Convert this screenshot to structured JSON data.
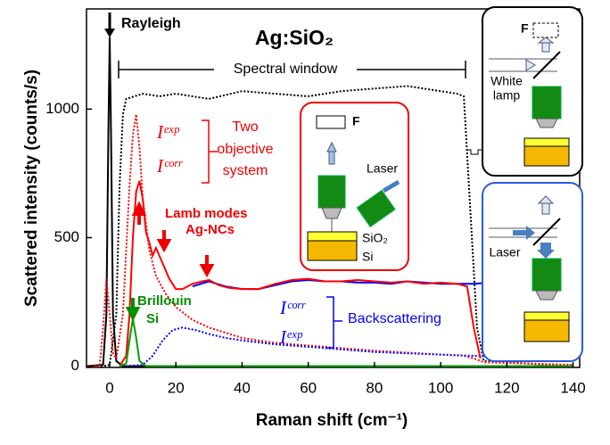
{
  "chart_data": {
    "type": "line",
    "title": "Ag:SiO₂",
    "x_label": "Raman shift (cm⁻¹)",
    "y_label": "Scattered intensity (counts/s)",
    "xlim": [
      -7,
      142
    ],
    "ylim": [
      -5,
      1390
    ],
    "xticks": [
      0,
      20,
      40,
      60,
      80,
      100,
      120,
      140
    ],
    "yticks": [
      0,
      500,
      1000
    ],
    "series": [
      {
        "color": "#000000",
        "style": "solid",
        "x": [
          -7,
          -2,
          -1,
          -0.4,
          0,
          0.4,
          1,
          2,
          4,
          140
        ],
        "values": [
          0,
          5,
          200,
          900,
          1280,
          900,
          200,
          20,
          0,
          0
        ]
      },
      {
        "color": "#000000",
        "style": "dotted",
        "x": [
          -7,
          -2,
          0,
          2,
          3,
          4,
          5,
          10,
          15,
          20,
          30,
          40,
          50,
          60,
          70,
          80,
          90,
          100,
          105,
          107,
          109,
          111,
          113,
          140
        ],
        "values": [
          0,
          0,
          5,
          200,
          700,
          980,
          1040,
          1060,
          1050,
          1060,
          1040,
          1070,
          1060,
          1050,
          1070,
          1080,
          1090,
          1070,
          1060,
          1050,
          600,
          150,
          20,
          0
        ]
      },
      {
        "color": "#ff0000",
        "style": "dotted",
        "x": [
          -7,
          -3,
          -2,
          -1,
          0,
          1,
          2,
          4,
          6,
          7,
          8,
          9,
          10,
          12,
          14,
          17,
          20,
          25,
          30,
          40,
          50,
          60,
          80,
          100,
          107,
          110,
          113,
          140
        ],
        "values": [
          0,
          0,
          150,
          340,
          200,
          50,
          30,
          200,
          700,
          900,
          980,
          850,
          650,
          450,
          350,
          280,
          230,
          180,
          150,
          110,
          90,
          80,
          60,
          45,
          40,
          30,
          15,
          5
        ]
      },
      {
        "color": "#0000ff",
        "style": "dotted",
        "x": [
          5,
          10,
          13,
          16,
          19,
          22,
          26,
          30,
          35,
          40,
          50,
          60,
          70,
          80,
          90,
          100,
          110,
          112,
          115,
          120,
          140
        ],
        "values": [
          0,
          5,
          40,
          100,
          140,
          150,
          140,
          125,
          110,
          100,
          85,
          75,
          65,
          55,
          50,
          45,
          40,
          40,
          35,
          35,
          35
        ]
      },
      {
        "color": "#0000ff",
        "style": "solid",
        "x": [
          25,
          30,
          35,
          40,
          45,
          50,
          55,
          60,
          65,
          70,
          75,
          80,
          85,
          90,
          95,
          100,
          105,
          110,
          115,
          120,
          125,
          130,
          135,
          140
        ],
        "values": [
          310,
          330,
          310,
          300,
          300,
          315,
          330,
          335,
          330,
          330,
          325,
          325,
          320,
          330,
          325,
          320,
          320,
          320,
          325,
          320,
          315,
          320,
          325,
          320
        ]
      },
      {
        "color": "#ff0000",
        "style": "solid",
        "x": [
          3,
          5,
          6,
          7,
          8,
          9,
          10,
          11,
          12,
          13,
          14,
          16,
          18,
          20,
          22,
          25,
          28,
          30,
          33,
          36,
          40,
          45,
          50,
          55,
          60,
          65,
          70,
          75,
          80,
          85,
          90,
          95,
          100,
          105,
          108,
          110,
          112
        ],
        "values": [
          0,
          40,
          200,
          500,
          680,
          720,
          650,
          520,
          480,
          430,
          460,
          400,
          340,
          300,
          300,
          320,
          330,
          335,
          315,
          305,
          300,
          300,
          320,
          335,
          340,
          330,
          330,
          335,
          330,
          325,
          330,
          320,
          325,
          320,
          310,
          150,
          30
        ]
      },
      {
        "color": "#00a000",
        "style": "solid",
        "x": [
          3,
          5,
          6,
          7,
          8,
          9,
          11,
          140
        ],
        "values": [
          0,
          10,
          100,
          185,
          110,
          20,
          0,
          0
        ]
      }
    ],
    "annotations": [
      "Rayleigh",
      "Spectral window",
      "Iᵉˣᵖ",
      "Iᶜᵒʳʳ",
      "Two",
      "objective",
      "system",
      "Lamb modes",
      "Ag-NCs",
      "Brillouin",
      "Si",
      "Iᶜᵒʳʳ",
      "Iᵉˣᵖ",
      "Backscattering"
    ],
    "insets": {
      "two_objective": [
        "F",
        "Laser",
        "SiO₂",
        "Si"
      ],
      "white_lamp": [
        "F",
        "White",
        "lamp"
      ],
      "backscattering": [
        "Laser"
      ]
    }
  }
}
